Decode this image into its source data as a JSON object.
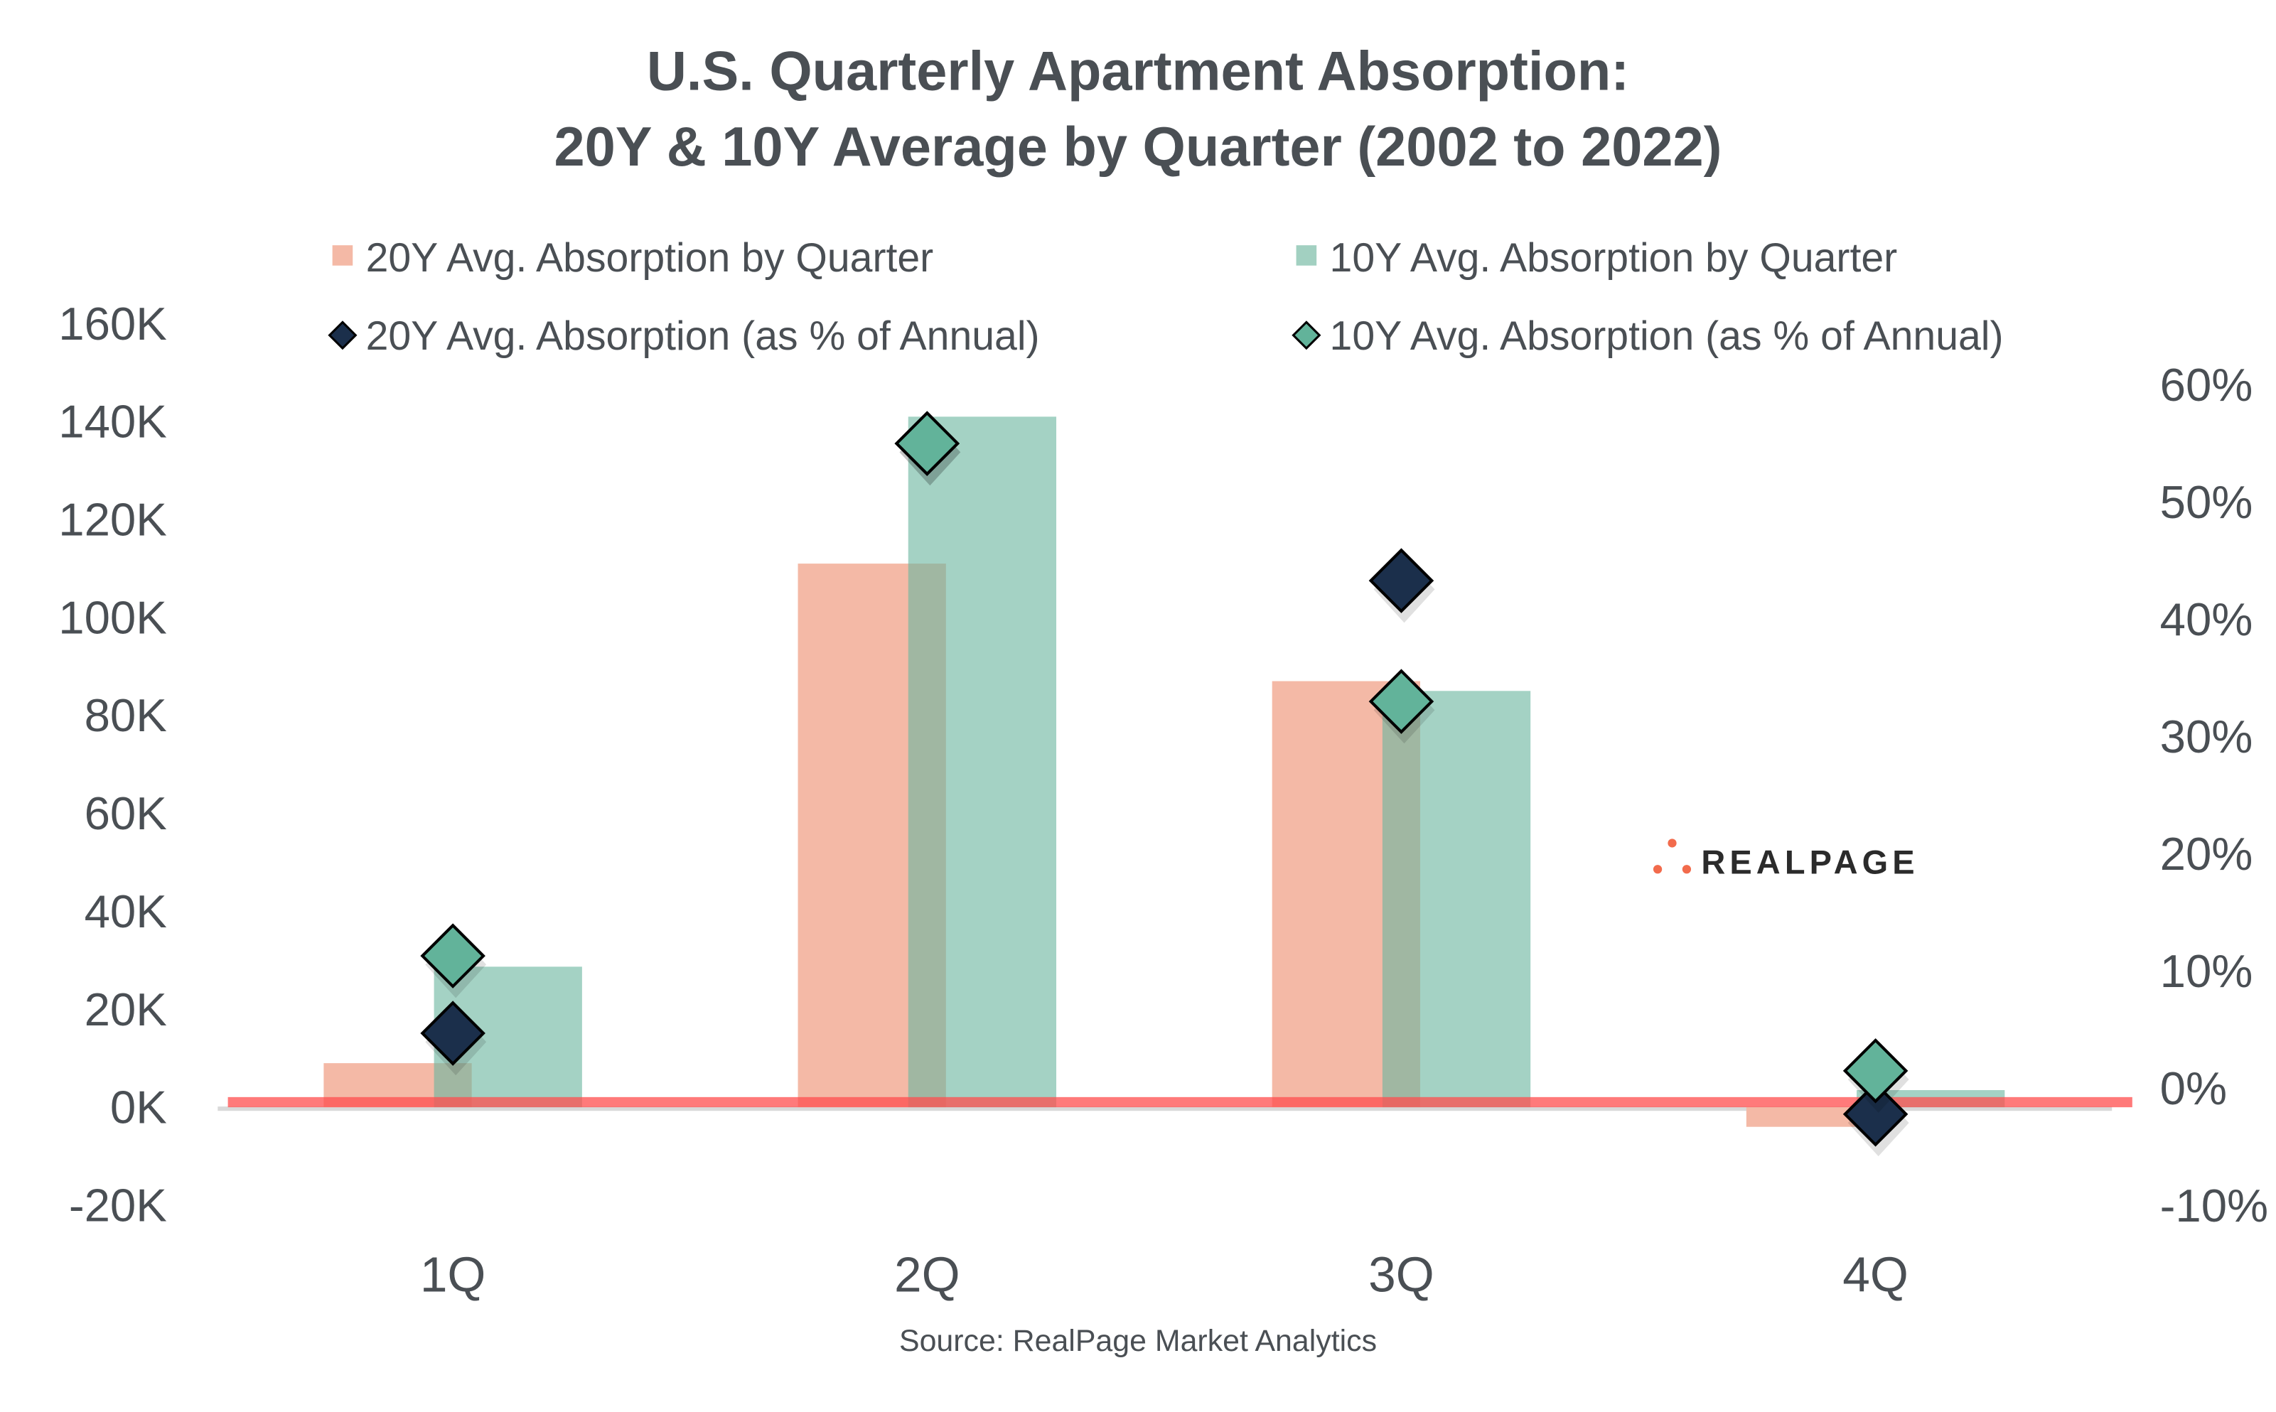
{
  "chart_data": {
    "type": "bar",
    "title": [
      "U.S. Quarterly Apartment Absorption:",
      "20Y & 10Y Average by Quarter (2002 to 2022)"
    ],
    "categories": [
      "1Q",
      "2Q",
      "3Q",
      "4Q"
    ],
    "series": [
      {
        "name": "20Y Avg. Absorption by Quarter",
        "type": "bar",
        "axis": "left",
        "color": "#f4b9a6",
        "values": [
          9000,
          111000,
          87000,
          -4000
        ]
      },
      {
        "name": "10Y Avg. Absorption by Quarter",
        "type": "bar",
        "axis": "left",
        "color": "#8fc8b5",
        "values": [
          28700,
          141000,
          85000,
          3500
        ]
      },
      {
        "name": "20Y Avg. Absorption (as % of Annual)",
        "type": "scatter",
        "marker": "diamond",
        "axis": "right",
        "color": "#1b2f4b",
        "values": [
          4.7,
          55,
          43.3,
          -2.2
        ]
      },
      {
        "name": "10Y Avg. Absorption (as % of Annual)",
        "type": "scatter",
        "marker": "diamond",
        "axis": "right",
        "color": "#62b39a",
        "values": [
          11.3,
          55,
          33,
          1.5
        ]
      }
    ],
    "left_axis": {
      "range": [
        -20000,
        160000
      ],
      "ticks": [
        "160K",
        "140K",
        "120K",
        "100K",
        "80K",
        "60K",
        "40K",
        "20K",
        "0K",
        "-20K"
      ],
      "tick_values": [
        160,
        140,
        120,
        100,
        80,
        60,
        40,
        20,
        0,
        -20
      ]
    },
    "right_axis": {
      "range": [
        -10,
        60
      ],
      "ticks": [
        "60%",
        "50%",
        "40%",
        "30%",
        "20%",
        "10%",
        "0%",
        "-10%"
      ],
      "tick_values": [
        60,
        50,
        40,
        30,
        20,
        10,
        0,
        -10
      ]
    },
    "legend_placement": "top",
    "grid": false,
    "source": "Source: RealPage Market Analytics",
    "logo": "REALPAGE"
  }
}
